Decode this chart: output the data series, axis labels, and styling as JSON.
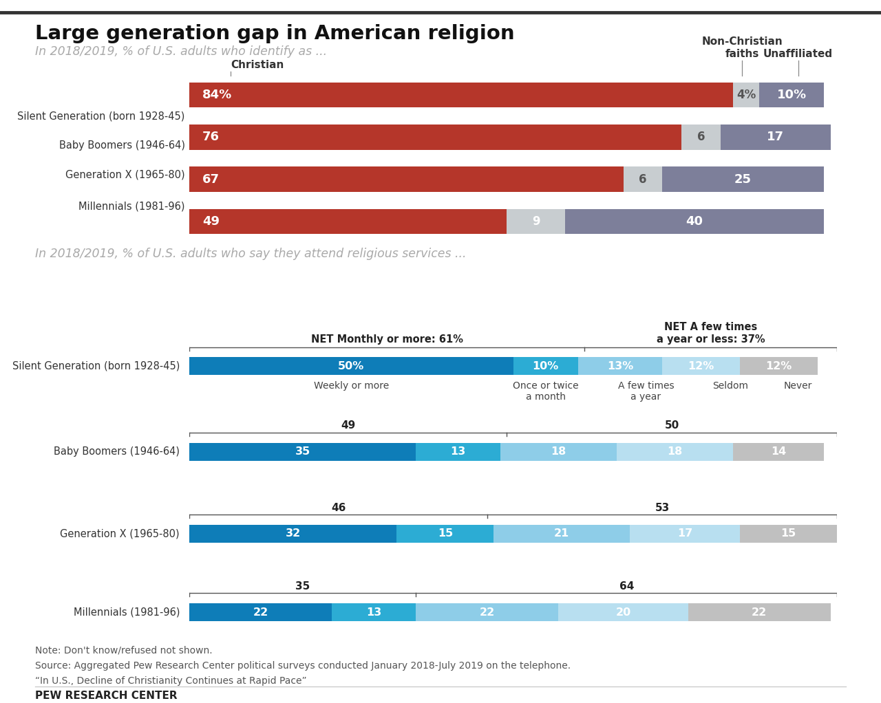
{
  "title": "Large generation gap in American religion",
  "subtitle1": "In 2018/2019, % of U.S. adults who identify as ...",
  "subtitle2": "In 2018/2019, % of U.S. adults who say they attend religious services ...",
  "note": "Note: Don't know/refused not shown.",
  "source1": "Source: Aggregated Pew Research Center political surveys conducted January 2018-July 2019 on the telephone.",
  "source2": "“In U.S., Decline of Christianity Continues at Rapid Pace”",
  "footer": "PEW RESEARCH CENTER",
  "chart1": {
    "generations": [
      "Silent Generation (born 1928-45)",
      "Baby Boomers (1946-64)",
      "Generation X (1965-80)",
      "Millennials (1981-96)"
    ],
    "christian": [
      84,
      76,
      67,
      49
    ],
    "non_christian": [
      4,
      6,
      6,
      9
    ],
    "unaffiliated": [
      10,
      17,
      25,
      40
    ],
    "christian_color": "#b5362a",
    "non_christian_color": "#c8cdd0",
    "unaffiliated_color": "#7d7f9a",
    "col_label_christian": "Christian",
    "col_label_nonchristian": "Non-Christian\nfaiths",
    "col_label_unaffiliated": "Unaffiliated"
  },
  "chart2": {
    "generations": [
      "Silent Generation (born 1928-45)",
      "Baby Boomers (1946-64)",
      "Generation X (1965-80)",
      "Millennials (1981-96)"
    ],
    "weekly": [
      50,
      35,
      32,
      22
    ],
    "once_twice": [
      10,
      13,
      15,
      13
    ],
    "few_times": [
      13,
      18,
      21,
      22
    ],
    "seldom": [
      12,
      18,
      17,
      20
    ],
    "never": [
      12,
      14,
      15,
      22
    ],
    "net_monthly": [
      61,
      49,
      46,
      35
    ],
    "net_few": [
      37,
      50,
      53,
      64
    ],
    "weekly_color": "#0e7db8",
    "once_twice_color": "#2cacd4",
    "few_times_color": "#8ecde8",
    "seldom_color": "#b8dff0",
    "never_color": "#c0c0c0",
    "col_labels": [
      "Weekly or more",
      "Once or twice\na month",
      "A few times\na year",
      "Seldom",
      "Never"
    ],
    "net_monthly_label": "NET Monthly or more: 61%",
    "net_few_label": "NET A few times\na year or less: 37%"
  },
  "bg_color": "#ffffff",
  "text_color": "#222222"
}
